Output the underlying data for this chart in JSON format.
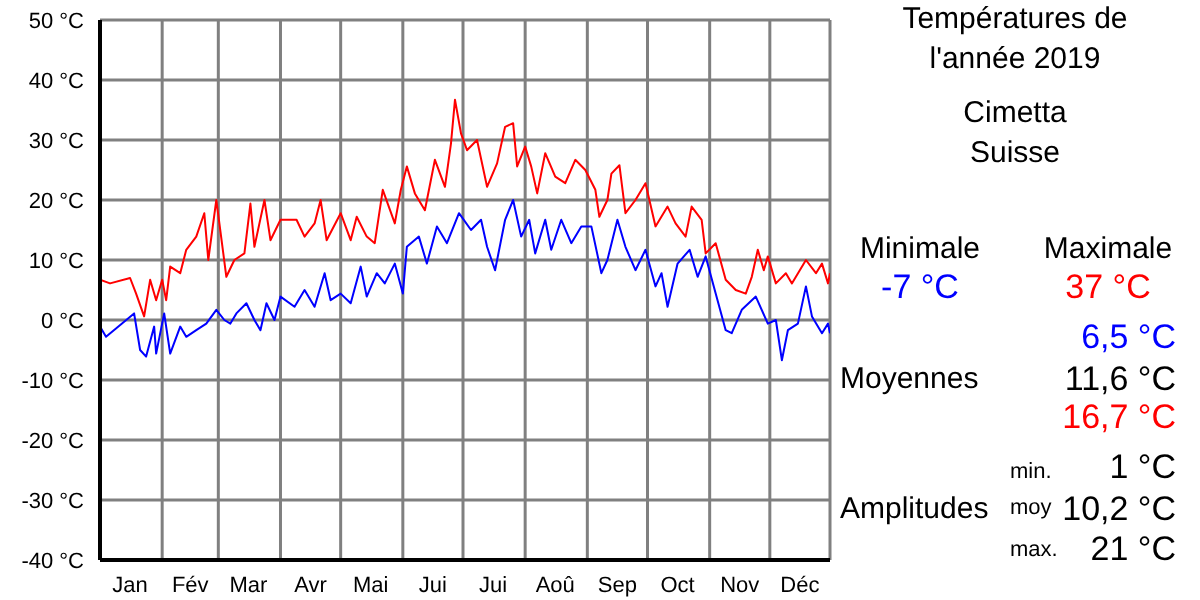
{
  "chart_data": {
    "type": "line",
    "title": "Températures de l'année 2019",
    "subtitle": "Cimetta\nSuisse",
    "xlim": [
      "2019-01-01",
      "2019-12-31"
    ],
    "xticks": [
      {
        "value": "2019-01-01",
        "label": null
      },
      {
        "value": "2019-01-16",
        "label": "Jan"
      },
      {
        "value": "2019-02-01",
        "label": null
      },
      {
        "value": "2019-02-15",
        "label": "Fév"
      },
      {
        "value": "2019-03-01",
        "label": null
      },
      {
        "value": "2019-03-16",
        "label": "Mar"
      },
      {
        "value": "2019-04-01",
        "label": null
      },
      {
        "value": "2019-04-16",
        "label": "Avr"
      },
      {
        "value": "2019-05-01",
        "label": null
      },
      {
        "value": "2019-05-16",
        "label": "Mai"
      },
      {
        "value": "2019-06-01",
        "label": null
      },
      {
        "value": "2019-06-16",
        "label": "Jui"
      },
      {
        "value": "2019-07-01",
        "label": null
      },
      {
        "value": "2019-07-16",
        "label": "Jui"
      },
      {
        "value": "2019-08-01",
        "label": null
      },
      {
        "value": "2019-08-16",
        "label": "Aoû"
      },
      {
        "value": "2019-09-01",
        "label": null
      },
      {
        "value": "2019-09-16",
        "label": "Sep"
      },
      {
        "value": "2019-10-01",
        "label": null
      },
      {
        "value": "2019-10-16",
        "label": "Oct"
      },
      {
        "value": "2019-11-01",
        "label": null
      },
      {
        "value": "2019-11-16",
        "label": "Nov"
      },
      {
        "value": "2019-12-01",
        "label": null
      },
      {
        "value": "2019-12-16",
        "label": "Déc"
      },
      {
        "value": "2019-12-31",
        "label": null
      }
    ],
    "ylim": [
      -40,
      50
    ],
    "yticks": [
      {
        "value": -40,
        "label": "-40 °C"
      },
      {
        "value": -30,
        "label": "-30 °C"
      },
      {
        "value": -20,
        "label": "-20 °C"
      },
      {
        "value": -10,
        "label": "-10 °C"
      },
      {
        "value": 0,
        "label": "0 °C"
      },
      {
        "value": 10,
        "label": "10 °C"
      },
      {
        "value": 20,
        "label": "20 °C"
      },
      {
        "value": 30,
        "label": "30 °C"
      },
      {
        "value": 40,
        "label": "40 °C"
      },
      {
        "value": 50,
        "label": "50 °C"
      }
    ],
    "grid": true,
    "series": [
      {
        "color": "#ff0000",
        "x": [
          "2019-01-01",
          "2019-01-06",
          "2019-01-16",
          "2019-01-19",
          "2019-01-23",
          "2019-01-26",
          "2019-01-29",
          "2019-02-01",
          "2019-02-03",
          "2019-02-05",
          "2019-02-10",
          "2019-02-13",
          "2019-02-18",
          "2019-02-22",
          "2019-02-24",
          "2019-02-28",
          "2019-03-05",
          "2019-03-09",
          "2019-03-14",
          "2019-03-17",
          "2019-03-19",
          "2019-03-24",
          "2019-03-27",
          "2019-04-01",
          "2019-04-09",
          "2019-04-13",
          "2019-04-18",
          "2019-04-21",
          "2019-04-24",
          "2019-05-01",
          "2019-05-06",
          "2019-05-09",
          "2019-05-14",
          "2019-05-18",
          "2019-05-22",
          "2019-05-28",
          "2019-05-31",
          "2019-06-03",
          "2019-06-07",
          "2019-06-12",
          "2019-06-17",
          "2019-06-22",
          "2019-06-25",
          "2019-06-27",
          "2019-06-30",
          "2019-07-03",
          "2019-07-08",
          "2019-07-13",
          "2019-07-18",
          "2019-07-22",
          "2019-07-26",
          "2019-07-28",
          "2019-08-01",
          "2019-08-04",
          "2019-08-07",
          "2019-08-11",
          "2019-08-16",
          "2019-08-21",
          "2019-08-26",
          "2019-08-31",
          "2019-09-05",
          "2019-09-07",
          "2019-09-11",
          "2019-09-13",
          "2019-09-17",
          "2019-09-20",
          "2019-09-25",
          "2019-09-30",
          "2019-10-05",
          "2019-10-11",
          "2019-10-15",
          "2019-10-20",
          "2019-10-23",
          "2019-10-28",
          "2019-10-30",
          "2019-11-04",
          "2019-11-09",
          "2019-11-14",
          "2019-11-19",
          "2019-11-22",
          "2019-11-25",
          "2019-11-28",
          "2019-11-30",
          "2019-12-04",
          "2019-12-09",
          "2019-12-12",
          "2019-12-19",
          "2019-12-24",
          "2019-12-27",
          "2019-12-30",
          "2019-12-31"
        ],
        "values": [
          6.7,
          6.1,
          7,
          4.4,
          0.6,
          6.7,
          3.3,
          6.7,
          3.3,
          8.9,
          7.8,
          11.7,
          13.9,
          17.8,
          10,
          20,
          7.2,
          10,
          11.1,
          19.4,
          12.2,
          20,
          13.3,
          16.7,
          16.7,
          13.9,
          16.1,
          20,
          13.3,
          17.8,
          13.3,
          17.2,
          13.9,
          12.8,
          21.7,
          16.1,
          21.7,
          25.6,
          21.1,
          18.3,
          26.7,
          22.2,
          29.4,
          36.7,
          31.1,
          28.3,
          30,
          22.2,
          26.1,
          32.2,
          32.8,
          25.6,
          28.9,
          25.6,
          21.1,
          27.8,
          23.9,
          22.8,
          26.7,
          25,
          21.7,
          17.2,
          20,
          24.4,
          25.8,
          17.8,
          20,
          22.8,
          15.6,
          18.9,
          16.1,
          13.9,
          18.9,
          16.7,
          11.1,
          12.8,
          6.7,
          5,
          4.4,
          7.2,
          11.7,
          8.3,
          10.6,
          6.1,
          7.8,
          6.1,
          10,
          7.8,
          9.4,
          6.1,
          7.8
        ]
      },
      {
        "color": "#0000ff",
        "x": [
          "2019-01-01",
          "2019-01-04",
          "2019-01-18",
          "2019-01-21",
          "2019-01-24",
          "2019-01-28",
          "2019-01-29",
          "2019-02-02",
          "2019-02-05",
          "2019-02-10",
          "2019-02-13",
          "2019-02-18",
          "2019-02-23",
          "2019-02-28",
          "2019-03-04",
          "2019-03-07",
          "2019-03-10",
          "2019-03-15",
          "2019-03-19",
          "2019-03-22",
          "2019-03-25",
          "2019-03-29",
          "2019-04-01",
          "2019-04-08",
          "2019-04-13",
          "2019-04-18",
          "2019-04-23",
          "2019-04-26",
          "2019-05-01",
          "2019-05-06",
          "2019-05-11",
          "2019-05-14",
          "2019-05-19",
          "2019-05-23",
          "2019-05-28",
          "2019-06-01",
          "2019-06-03",
          "2019-06-09",
          "2019-06-13",
          "2019-06-18",
          "2019-06-23",
          "2019-06-29",
          "2019-07-05",
          "2019-07-10",
          "2019-07-13",
          "2019-07-17",
          "2019-07-22",
          "2019-07-26",
          "2019-07-30",
          "2019-08-03",
          "2019-08-06",
          "2019-08-11",
          "2019-08-14",
          "2019-08-19",
          "2019-08-24",
          "2019-08-29",
          "2019-09-03",
          "2019-09-08",
          "2019-09-11",
          "2019-09-16",
          "2019-09-20",
          "2019-09-25",
          "2019-09-30",
          "2019-10-05",
          "2019-10-08",
          "2019-10-11",
          "2019-10-16",
          "2019-10-22",
          "2019-10-26",
          "2019-10-30",
          "2019-11-04",
          "2019-11-09",
          "2019-11-12",
          "2019-11-17",
          "2019-11-24",
          "2019-11-30",
          "2019-12-04",
          "2019-12-07",
          "2019-12-10",
          "2019-12-15",
          "2019-12-19",
          "2019-12-22",
          "2019-12-27",
          "2019-12-30",
          "2019-12-31"
        ],
        "values": [
          -1.1,
          -2.8,
          1.1,
          -5,
          -6.1,
          -1.1,
          -5.6,
          1.1,
          -5.6,
          -1.1,
          -2.8,
          -1.7,
          -0.6,
          1.7,
          0,
          -0.6,
          1.1,
          2.8,
          0,
          -1.7,
          2.8,
          0,
          3.9,
          2.2,
          5,
          2.2,
          7.8,
          3.3,
          4.4,
          2.8,
          8.9,
          3.9,
          7.8,
          6.1,
          9.4,
          4.4,
          12.2,
          13.9,
          9.4,
          15.6,
          12.8,
          17.8,
          15,
          16.7,
          12.2,
          8.3,
          16.7,
          20,
          13.9,
          16.7,
          11.1,
          16.7,
          11.7,
          16.7,
          12.8,
          15.6,
          15.6,
          7.8,
          10,
          16.7,
          12.2,
          8.3,
          11.7,
          5.6,
          7.8,
          2.2,
          9.4,
          11.7,
          7.2,
          10.6,
          4.4,
          -1.7,
          -2.2,
          1.7,
          3.9,
          -0.6,
          0,
          -6.7,
          -1.7,
          -0.6,
          5.6,
          0.6,
          -2.2,
          -0.6,
          -2.2
        ]
      }
    ],
    "annotations": [
      "Minimale",
      "Maximale",
      "-7 °C",
      "37 °C",
      "6,5 °C",
      "Moyennes",
      "11,6 °C",
      "16,7 °C",
      "min.",
      "1 °C",
      "Amplitudes",
      "moy",
      "10,2 °C",
      "max.",
      "21 °C"
    ]
  }
}
